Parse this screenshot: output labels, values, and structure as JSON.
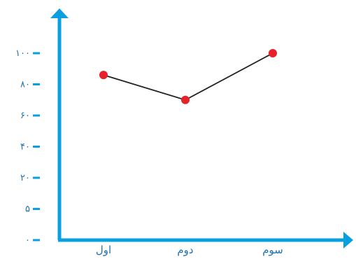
{
  "chart_data": {
    "type": "line",
    "title": "",
    "xlabel": "",
    "ylabel": "",
    "categories": [
      "اول",
      "دوم",
      "سوم"
    ],
    "series": [
      {
        "values": [
          86,
          70,
          100
        ]
      }
    ],
    "y_ticks": [
      {
        "value": 0,
        "label": "۰"
      },
      {
        "value": 5,
        "label": "۵"
      },
      {
        "value": 20,
        "label": "۲۰"
      },
      {
        "value": 40,
        "label": "۴۰"
      },
      {
        "value": 60,
        "label": "۶۰"
      },
      {
        "value": 80,
        "label": "۸۰"
      },
      {
        "value": 100,
        "label": "۱۰۰"
      }
    ],
    "grid": false,
    "legend": "none",
    "colors": {
      "axis": "#0aa0e0",
      "line": "#222222",
      "point": "#e8202a",
      "tick_label": "#1f73b5"
    }
  }
}
